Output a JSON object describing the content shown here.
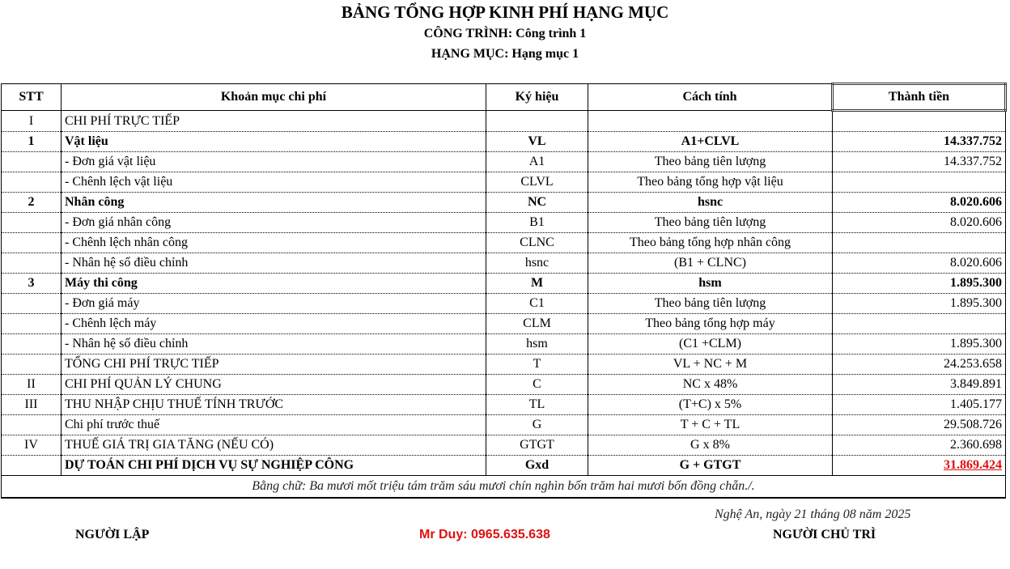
{
  "title": "BẢNG TỔNG HỢP KINH PHÍ HẠNG MỤC",
  "project": "CÔNG TRÌNH:  Công trình 1",
  "item": "HẠNG MỤC:  Hạng mục 1",
  "headers": [
    "STT",
    "Khoản mục chi phí",
    "Ký hiệu",
    "Cách tính",
    "Thành tiền"
  ],
  "rows": [
    {
      "stt": "I",
      "name": "CHI PHÍ TRỰC TIẾP",
      "sym": "",
      "calc": "",
      "amount": "",
      "bold": false
    },
    {
      "stt": "1",
      "name": "Vật liệu",
      "sym": "VL",
      "calc": "A1+CLVL",
      "amount": "14.337.752",
      "bold": true
    },
    {
      "stt": "",
      "name": " - Đơn giá vật liệu",
      "sym": "A1",
      "calc": "Theo bảng tiên lượng",
      "amount": "14.337.752",
      "bold": false
    },
    {
      "stt": "",
      "name": " - Chênh lệch vật liệu",
      "sym": "CLVL",
      "calc": "Theo bảng tổng hợp vật liệu",
      "amount": "",
      "bold": false
    },
    {
      "stt": "2",
      "name": "Nhân công",
      "sym": "NC",
      "calc": "hsnc",
      "amount": "8.020.606",
      "bold": true
    },
    {
      "stt": "",
      "name": " - Đơn giá nhân công",
      "sym": "B1",
      "calc": "Theo bảng tiên lượng",
      "amount": "8.020.606",
      "bold": false
    },
    {
      "stt": "",
      "name": " - Chênh lệch nhân công",
      "sym": "CLNC",
      "calc": "Theo bảng tổng hợp nhân công",
      "amount": "",
      "bold": false
    },
    {
      "stt": "",
      "name": " - Nhân hệ số điều chỉnh",
      "sym": "hsnc",
      "calc": "(B1 + CLNC)",
      "amount": "8.020.606",
      "bold": false
    },
    {
      "stt": "3",
      "name": "Máy thi công",
      "sym": "M",
      "calc": "hsm",
      "amount": "1.895.300",
      "bold": true
    },
    {
      "stt": "",
      "name": " - Đơn giá máy",
      "sym": "C1",
      "calc": "Theo bảng tiên lượng",
      "amount": "1.895.300",
      "bold": false
    },
    {
      "stt": "",
      "name": " - Chênh lệch máy",
      "sym": "CLM",
      "calc": "Theo bảng tổng hợp máy",
      "amount": "",
      "bold": false
    },
    {
      "stt": "",
      "name": " - Nhân hệ số điều chỉnh",
      "sym": "hsm",
      "calc": "(C1 +CLM)",
      "amount": "1.895.300",
      "bold": false
    },
    {
      "stt": "",
      "name": "TỔNG CHI PHÍ TRỰC TIẾP",
      "sym": "T",
      "calc": "VL + NC + M",
      "amount": "24.253.658",
      "bold": false
    },
    {
      "stt": "II",
      "name": "CHI PHÍ QUẢN LÝ CHUNG",
      "sym": "C",
      "calc": "NC x 48%",
      "amount": "3.849.891",
      "bold": false
    },
    {
      "stt": "III",
      "name": "THU NHẬP CHỊU THUẾ TÍNH TRƯỚC",
      "sym": "TL",
      "calc": "(T+C) x 5%",
      "amount": "1.405.177",
      "bold": false
    },
    {
      "stt": "",
      "name": "Chi phí trước thuế",
      "sym": "G",
      "calc": "T + C + TL",
      "amount": "29.508.726",
      "bold": false
    },
    {
      "stt": "IV",
      "name": "THUẾ GIÁ TRỊ GIA TĂNG (NẾU CÓ)",
      "sym": "GTGT",
      "calc": "G x 8%",
      "amount": "2.360.698",
      "bold": false
    },
    {
      "stt": "",
      "name": "DỰ TOÁN CHI PHÍ DỊCH VỤ SỰ NGHIỆP CÔNG",
      "sym": "Gxd",
      "calc": "G + GTGT",
      "amount": "31.869.424",
      "bold": true
    }
  ],
  "in_words": "Bằng chữ: Ba mươi mốt triệu tám trăm sáu mươi chín nghìn bốn trăm hai mươi bốn đồng chẵn./.",
  "date_line": "Nghệ An, ngày 21 tháng 08 năm 2025",
  "preparer": "NGƯỜI LẬP",
  "contact": "Mr Duy: 0965.635.638",
  "approver": "NGƯỜI CHỦ TRÌ",
  "colors": {
    "total": "#e01010",
    "contact": "#e01010"
  }
}
